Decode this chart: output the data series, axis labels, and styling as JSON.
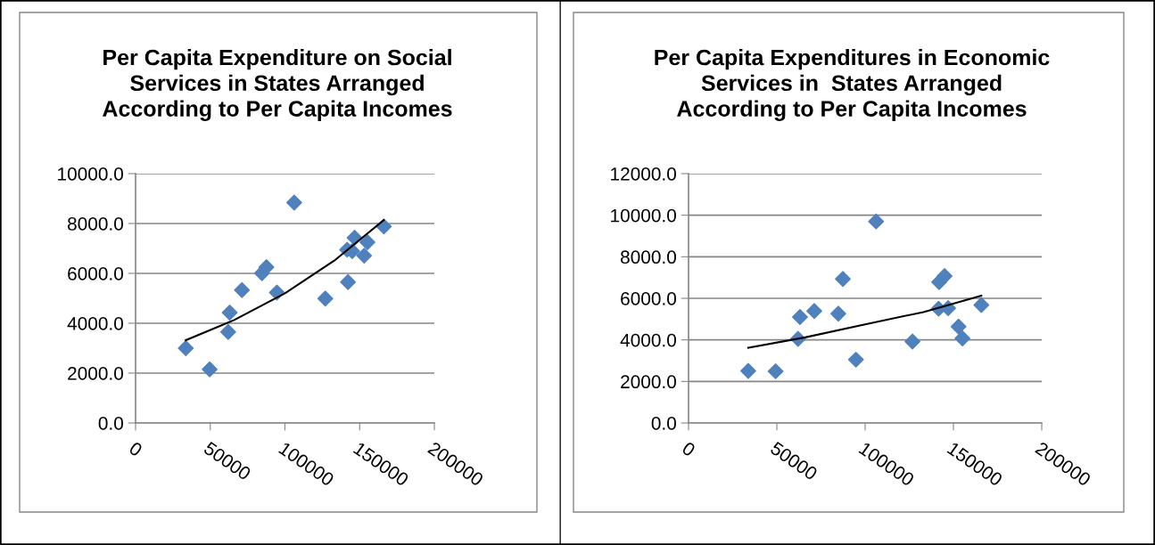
{
  "chart_data": [
    {
      "type": "scatter",
      "title": "Per Capita Expenditure on Social Services in States Arranged According to Per Capita Incomes",
      "marker": "diamond",
      "grid": "y",
      "xlim": [
        0,
        200000
      ],
      "xticks": [
        0,
        50000,
        100000,
        150000,
        200000
      ],
      "ylim": [
        0,
        10000
      ],
      "yticks": [
        {
          "value": 0,
          "label": "0.0"
        },
        {
          "value": 2000,
          "label": "2000.0"
        },
        {
          "value": 4000,
          "label": "4000.0"
        },
        {
          "value": 6000,
          "label": "6000.0"
        },
        {
          "value": 8000,
          "label": "8000.0"
        },
        {
          "value": 10000,
          "label": "10000.0"
        }
      ],
      "series": [
        {
          "color": "#4f81bd",
          "x": [
            33600,
            49600,
            62000,
            63000,
            71200,
            84600,
            87600,
            94600,
            106200,
            127000,
            141600,
            145000,
            146600,
            142200,
            153000,
            155200,
            166200
          ],
          "values": [
            3000,
            2150,
            3650,
            4430,
            5330,
            6010,
            6250,
            5230,
            8840,
            4990,
            6950,
            6890,
            7430,
            5650,
            6710,
            7250,
            7880
          ]
        },
        {
          "type": "line",
          "marker": "none",
          "color": "#000000",
          "x": [
            33600,
            66000,
            100000,
            133000,
            166200
          ],
          "values": [
            3320,
            4130,
            5200,
            6510,
            8140
          ]
        }
      ]
    },
    {
      "type": "scatter",
      "title": "Per Capita Expenditures in Economic Services in  States Arranged According to Per Capita Incomes",
      "marker": "diamond",
      "grid": "y",
      "xlim": [
        0,
        200000
      ],
      "xticks": [
        0,
        50000,
        100000,
        150000,
        200000
      ],
      "ylim": [
        0,
        12000
      ],
      "yticks": [
        {
          "value": 0,
          "label": "0.0"
        },
        {
          "value": 2000,
          "label": "2000.0"
        },
        {
          "value": 4000,
          "label": "4000.0"
        },
        {
          "value": 6000,
          "label": "6000.0"
        },
        {
          "value": 8000,
          "label": "8000.0"
        },
        {
          "value": 10000,
          "label": "10000.0"
        },
        {
          "value": 12000,
          "label": "12000.0"
        }
      ],
      "series": [
        {
          "color": "#4f81bd",
          "x": [
            33800,
            49300,
            62000,
            63100,
            71200,
            84800,
            87400,
            94800,
            106200,
            126800,
            141600,
            141900,
            145000,
            147000,
            152900,
            155100,
            165800
          ],
          "values": [
            2510,
            2490,
            4050,
            5100,
            5390,
            5260,
            6930,
            3050,
            9700,
            3920,
            5500,
            6780,
            7070,
            5530,
            4640,
            4070,
            5680
          ]
        },
        {
          "type": "line",
          "marker": "none",
          "color": "#000000",
          "x": [
            33800,
            66000,
            100000,
            133000,
            165800
          ],
          "values": [
            3620,
            4120,
            4750,
            5340,
            6130
          ]
        }
      ]
    }
  ]
}
